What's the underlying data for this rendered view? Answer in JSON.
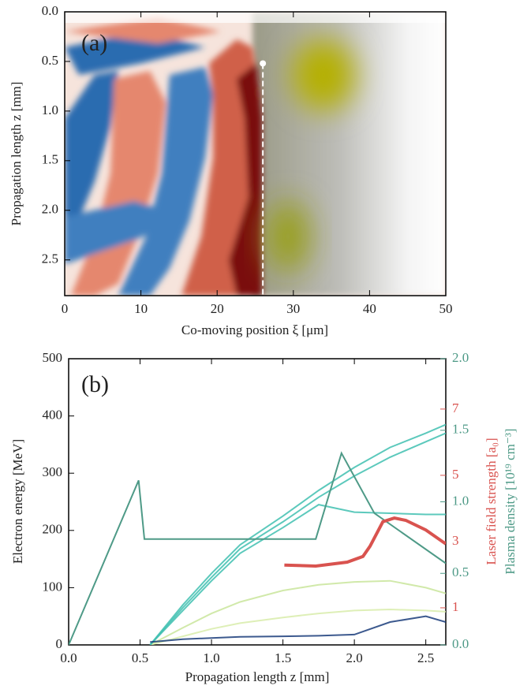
{
  "chart_data": [
    {
      "type": "heatmap",
      "panel_label": "(a)",
      "xlabel": "Co-moving position ξ [μm]",
      "ylabel": "Propagation length z [mm]",
      "xlim": [
        0,
        50
      ],
      "xticks": [
        0,
        10,
        20,
        30,
        40,
        50
      ],
      "ylim": [
        0,
        2.86
      ],
      "y_inverted": true,
      "yticks": [
        {
          "value": 0,
          "label": "0.0"
        },
        0.5,
        {
          "value": 1,
          "label": "1.0"
        },
        1.5,
        {
          "value": 2,
          "label": "2.0"
        },
        2.5
      ],
      "marker": {
        "x": 26,
        "y": 0.52,
        "color": "#ffffff"
      }
    },
    {
      "type": "line",
      "panel_label": "(b)",
      "xlabel": "Propagation length z [mm]",
      "ylabel": "Electron energy [MeV]",
      "y2label": "Plasma density [10¹⁹ cm⁻³]",
      "y3label": "Laser field strength [a₀]",
      "xlim": [
        0,
        2.64
      ],
      "xticks": [
        {
          "value": 0,
          "label": "0.0"
        },
        0.5,
        {
          "value": 1,
          "label": "1.0"
        },
        1.5,
        {
          "value": 2,
          "label": "2.0"
        },
        2.5
      ],
      "ylim": [
        0,
        500
      ],
      "yticks": [
        0,
        100,
        200,
        300,
        400,
        500
      ],
      "y2lim": [
        0,
        2
      ],
      "y2ticks": [
        {
          "value": 0,
          "label": "0.0"
        },
        0.5,
        {
          "value": 1,
          "label": "1.0"
        },
        1.5,
        {
          "value": 2,
          "label": "2.0"
        }
      ],
      "y3lim": [
        -0.12,
        8.52
      ],
      "y3ticks": [
        1,
        3,
        5,
        7
      ],
      "x": [
        0.57,
        0.8,
        1.0,
        1.2,
        1.5,
        1.75,
        2.0,
        2.25,
        2.5,
        2.64
      ],
      "series": [
        {
          "color": "#c9e59b",
          "values": [
            0,
            30,
            55,
            75,
            95,
            105,
            110,
            112,
            100,
            90
          ]
        },
        {
          "color": "#d8ecaa",
          "values": [
            0,
            15,
            28,
            38,
            48,
            55,
            60,
            62,
            60,
            58
          ]
        },
        {
          "color": "#3fbfb0",
          "values": [
            0,
            60,
            112,
            160,
            205,
            245,
            232,
            230,
            228,
            228
          ]
        },
        {
          "color": "#3fbfb0",
          "values": [
            0,
            65,
            118,
            168,
            215,
            258,
            295,
            328,
            355,
            370
          ]
        },
        {
          "color": "#3fbfb0",
          "values": [
            0,
            70,
            125,
            175,
            225,
            270,
            310,
            345,
            370,
            385
          ]
        },
        {
          "color": "#1a3c7a",
          "values": [
            5,
            10,
            12,
            14,
            15,
            16,
            18,
            40,
            50,
            40
          ]
        },
        {
          "color": "#4e9a87",
          "axis": "y2",
          "x": [
            0,
            0.49,
            0.53,
            1.73,
            1.91,
            2.14,
            2.64
          ],
          "values": [
            0,
            1.15,
            0.74,
            0.74,
            1.34,
            0.92,
            0.57
          ]
        },
        {
          "color": "#d9534f",
          "axis": "y3",
          "x": [
            1.51,
            1.73,
            1.95,
            2.06,
            2.11,
            2.2,
            2.28,
            2.36,
            2.5,
            2.64
          ],
          "values": [
            2.29,
            2.26,
            2.38,
            2.55,
            2.86,
            3.6,
            3.71,
            3.64,
            3.35,
            2.93
          ]
        }
      ]
    }
  ]
}
